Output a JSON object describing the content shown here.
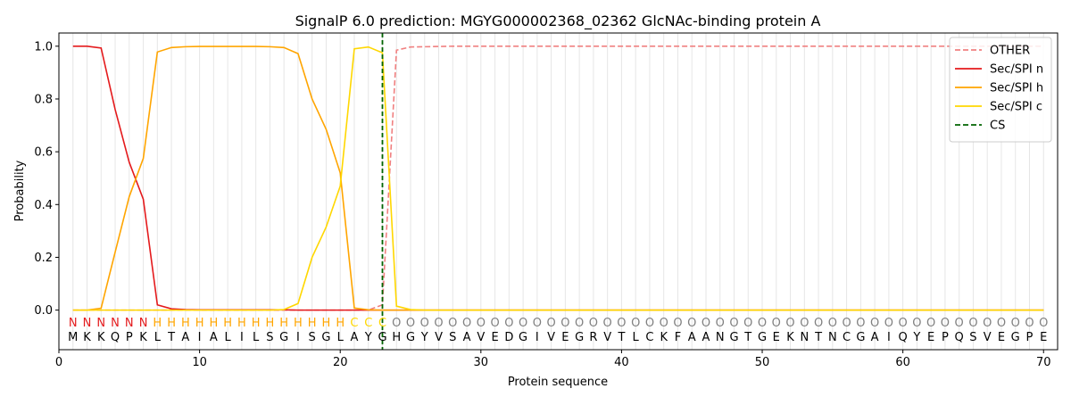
{
  "chart_data": {
    "type": "line",
    "title": "SignalP 6.0 prediction: MGYG000002368_02362 GlcNAc-binding protein A",
    "xlabel": "Protein sequence",
    "ylabel": "Probability",
    "xlim": [
      0,
      71
    ],
    "ylim": [
      -0.15,
      1.05
    ],
    "xticks": [
      0,
      10,
      20,
      30,
      40,
      50,
      60,
      70
    ],
    "yticks": [
      0.0,
      0.2,
      0.4,
      0.6,
      0.8,
      1.0
    ],
    "xtick_labels": [
      "0",
      "10",
      "20",
      "30",
      "40",
      "50",
      "60",
      "70"
    ],
    "ytick_labels": [
      "0.0",
      "0.2",
      "0.4",
      "0.6",
      "0.8",
      "1.0"
    ],
    "grid": "vertical lines at each residue position",
    "legend_position": "top-right",
    "sequence": [
      "M",
      "K",
      "K",
      "Q",
      "P",
      "K",
      "L",
      "T",
      "A",
      "I",
      "A",
      "L",
      "I",
      "L",
      "S",
      "G",
      "I",
      "S",
      "G",
      "L",
      "A",
      "Y",
      "G",
      "H",
      "G",
      "Y",
      "V",
      "S",
      "A",
      "V",
      "E",
      "D",
      "G",
      "I",
      "V",
      "E",
      "G",
      "R",
      "V",
      "T",
      "L",
      "C",
      "K",
      "F",
      "A",
      "A",
      "N",
      "G",
      "T",
      "G",
      "E",
      "K",
      "N",
      "T",
      "N",
      "C",
      "G",
      "A",
      "I",
      "Q",
      "Y",
      "E",
      "P",
      "Q",
      "S",
      "V",
      "E",
      "G",
      "P",
      "E"
    ],
    "labels": [
      "N",
      "N",
      "N",
      "N",
      "N",
      "N",
      "H",
      "H",
      "H",
      "H",
      "H",
      "H",
      "H",
      "H",
      "H",
      "H",
      "H",
      "H",
      "H",
      "H",
      "C",
      "C",
      "C",
      "O",
      "O",
      "O",
      "O",
      "O",
      "O",
      "O",
      "O",
      "O",
      "O",
      "O",
      "O",
      "O",
      "O",
      "O",
      "O",
      "O",
      "O",
      "O",
      "O",
      "O",
      "O",
      "O",
      "O",
      "O",
      "O",
      "O",
      "O",
      "O",
      "O",
      "O",
      "O",
      "O",
      "O",
      "O",
      "O",
      "O",
      "O",
      "O",
      "O",
      "O",
      "O",
      "O",
      "O",
      "O",
      "O",
      "O"
    ],
    "label_colors": {
      "N": "#e41a1c",
      "H": "#ffa500",
      "C": "#ffd700",
      "O": "#808080"
    },
    "series": [
      {
        "name": "OTHER",
        "color": "#f08080",
        "dash": "dashed",
        "x": [
          1,
          2,
          3,
          4,
          5,
          6,
          7,
          8,
          9,
          10,
          11,
          12,
          13,
          14,
          15,
          16,
          17,
          18,
          19,
          20,
          21,
          22,
          23,
          24,
          25,
          26,
          27,
          28,
          29,
          30,
          31,
          32,
          33,
          34,
          35,
          36,
          37,
          38,
          39,
          40,
          41,
          42,
          43,
          44,
          45,
          46,
          47,
          48,
          49,
          50,
          51,
          52,
          53,
          54,
          55,
          56,
          57,
          58,
          59,
          60,
          61,
          62,
          63,
          64,
          65,
          66,
          67,
          68,
          69,
          70
        ],
        "y": [
          0,
          0,
          0,
          0,
          0,
          0,
          0,
          0,
          0,
          0,
          0,
          0,
          0,
          0,
          0,
          0,
          0,
          0,
          0,
          0,
          0,
          0,
          0.02,
          0.985,
          0.997,
          0.998,
          0.999,
          1,
          1,
          1,
          1,
          1,
          1,
          1,
          1,
          1,
          1,
          1,
          1,
          1,
          1,
          1,
          1,
          1,
          1,
          1,
          1,
          1,
          1,
          1,
          1,
          1,
          1,
          1,
          1,
          1,
          1,
          1,
          1,
          1,
          1,
          1,
          1,
          1,
          1,
          1,
          1,
          1,
          1,
          1
        ]
      },
      {
        "name": "Sec/SPI n",
        "color": "#e41a1c",
        "dash": "solid",
        "x": [
          1,
          2,
          3,
          4,
          5,
          6,
          7,
          8,
          9,
          10,
          11,
          12,
          13,
          14,
          15,
          16,
          17,
          18,
          19,
          20,
          21,
          22,
          23,
          24,
          25,
          26,
          27,
          28,
          29,
          30,
          31,
          32,
          33,
          34,
          35,
          36,
          37,
          38,
          39,
          40,
          41,
          42,
          43,
          44,
          45,
          46,
          47,
          48,
          49,
          50,
          51,
          52,
          53,
          54,
          55,
          56,
          57,
          58,
          59,
          60,
          61,
          62,
          63,
          64,
          65,
          66,
          67,
          68,
          69,
          70
        ],
        "y": [
          1.0,
          1.0,
          0.993,
          0.76,
          0.56,
          0.42,
          0.02,
          0.005,
          0.002,
          0.001,
          0.001,
          0.001,
          0.001,
          0.001,
          0.001,
          0.001,
          0,
          0,
          0,
          0,
          0,
          0,
          0,
          0,
          0,
          0,
          0,
          0,
          0,
          0,
          0,
          0,
          0,
          0,
          0,
          0,
          0,
          0,
          0,
          0,
          0,
          0,
          0,
          0,
          0,
          0,
          0,
          0,
          0,
          0,
          0,
          0,
          0,
          0,
          0,
          0,
          0,
          0,
          0,
          0,
          0,
          0,
          0,
          0,
          0,
          0,
          0,
          0,
          0,
          0
        ]
      },
      {
        "name": "Sec/SPI h",
        "color": "#ffa500",
        "dash": "solid",
        "x": [
          1,
          2,
          3,
          4,
          5,
          6,
          7,
          8,
          9,
          10,
          11,
          12,
          13,
          14,
          15,
          16,
          17,
          18,
          19,
          20,
          21,
          22,
          23,
          24,
          25,
          26,
          27,
          28,
          29,
          30,
          31,
          32,
          33,
          34,
          35,
          36,
          37,
          38,
          39,
          40,
          41,
          42,
          43,
          44,
          45,
          46,
          47,
          48,
          49,
          50,
          51,
          52,
          53,
          54,
          55,
          56,
          57,
          58,
          59,
          60,
          61,
          62,
          63,
          64,
          65,
          66,
          67,
          68,
          69,
          70
        ],
        "y": [
          0,
          0,
          0.007,
          0.22,
          0.43,
          0.575,
          0.978,
          0.995,
          0.998,
          0.999,
          0.999,
          0.999,
          0.999,
          0.999,
          0.998,
          0.995,
          0.972,
          0.8,
          0.685,
          0.52,
          0.008,
          0.001,
          0,
          0,
          0,
          0,
          0,
          0,
          0,
          0,
          0,
          0,
          0,
          0,
          0,
          0,
          0,
          0,
          0,
          0,
          0,
          0,
          0,
          0,
          0,
          0,
          0,
          0,
          0,
          0,
          0,
          0,
          0,
          0,
          0,
          0,
          0,
          0,
          0,
          0,
          0,
          0,
          0,
          0,
          0,
          0,
          0,
          0,
          0,
          0
        ]
      },
      {
        "name": "Sec/SPI c",
        "color": "#ffd700",
        "dash": "solid",
        "x": [
          1,
          2,
          3,
          4,
          5,
          6,
          7,
          8,
          9,
          10,
          11,
          12,
          13,
          14,
          15,
          16,
          17,
          18,
          19,
          20,
          21,
          22,
          23,
          24,
          25,
          26,
          27,
          28,
          29,
          30,
          31,
          32,
          33,
          34,
          35,
          36,
          37,
          38,
          39,
          40,
          41,
          42,
          43,
          44,
          45,
          46,
          47,
          48,
          49,
          50,
          51,
          52,
          53,
          54,
          55,
          56,
          57,
          58,
          59,
          60,
          61,
          62,
          63,
          64,
          65,
          66,
          67,
          68,
          69,
          70
        ],
        "y": [
          0,
          0,
          0,
          0,
          0,
          0,
          0,
          0,
          0,
          0,
          0,
          0,
          0,
          0,
          0,
          0.002,
          0.025,
          0.2,
          0.315,
          0.47,
          0.99,
          0.997,
          0.975,
          0.015,
          0.002,
          0,
          0,
          0,
          0,
          0,
          0,
          0,
          0,
          0,
          0,
          0,
          0,
          0,
          0,
          0,
          0,
          0,
          0,
          0,
          0,
          0,
          0,
          0,
          0,
          0,
          0,
          0,
          0,
          0,
          0,
          0,
          0,
          0,
          0,
          0,
          0,
          0,
          0,
          0,
          0,
          0,
          0,
          0,
          0,
          0
        ]
      }
    ],
    "cleavage_site": {
      "name": "CS",
      "x": 23,
      "color": "#006400",
      "dash": "dashed"
    }
  }
}
